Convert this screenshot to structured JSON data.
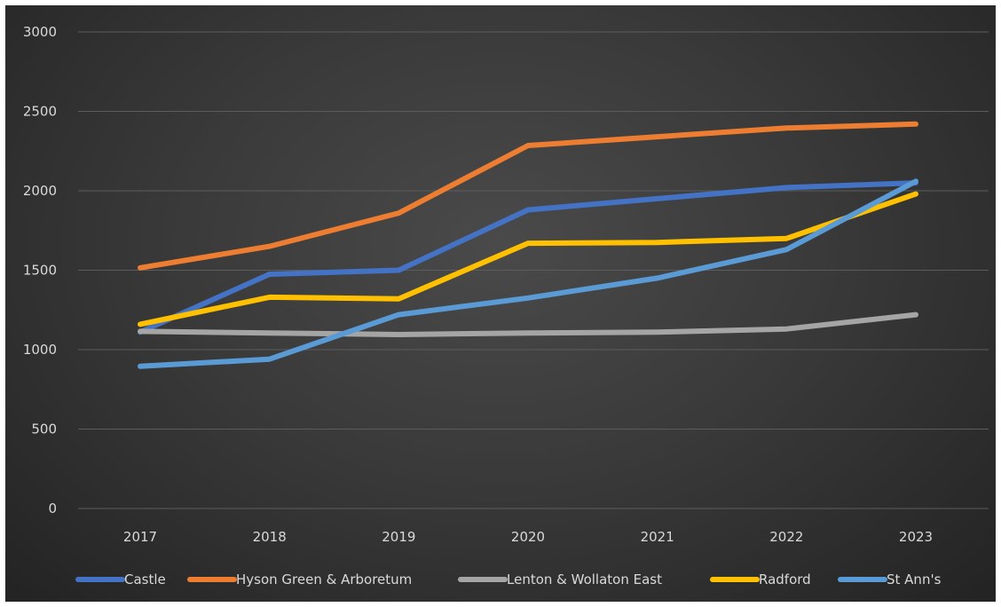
{
  "chart_data": {
    "type": "line",
    "title": "",
    "xlabel": "",
    "ylabel": "",
    "categories": [
      "2017",
      "2018",
      "2019",
      "2020",
      "2021",
      "2022",
      "2023"
    ],
    "y_ticks": [
      "0",
      "500",
      "1000",
      "1500",
      "2000",
      "2500",
      "3000"
    ],
    "ylim": [
      0,
      3000
    ],
    "grid": true,
    "legend_position": "bottom",
    "series": [
      {
        "name": "Castle",
        "color": "#4472c4",
        "values": [
          1110,
          1475,
          1500,
          1880,
          1950,
          2020,
          2050
        ]
      },
      {
        "name": "Hyson Green & Arboretum",
        "color": "#ed7d31",
        "values": [
          1515,
          1650,
          1860,
          2285,
          2340,
          2395,
          2420
        ]
      },
      {
        "name": "Lenton & Wollaton East",
        "color": "#a5a5a5",
        "values": [
          1115,
          1105,
          1095,
          1105,
          1110,
          1130,
          1220
        ]
      },
      {
        "name": "Radford",
        "color": "#ffc000",
        "values": [
          1160,
          1330,
          1320,
          1670,
          1675,
          1700,
          1980
        ]
      },
      {
        "name": "St Ann's",
        "color": "#5b9bd5",
        "values": [
          895,
          940,
          1220,
          1325,
          1450,
          1630,
          2060
        ]
      }
    ]
  }
}
